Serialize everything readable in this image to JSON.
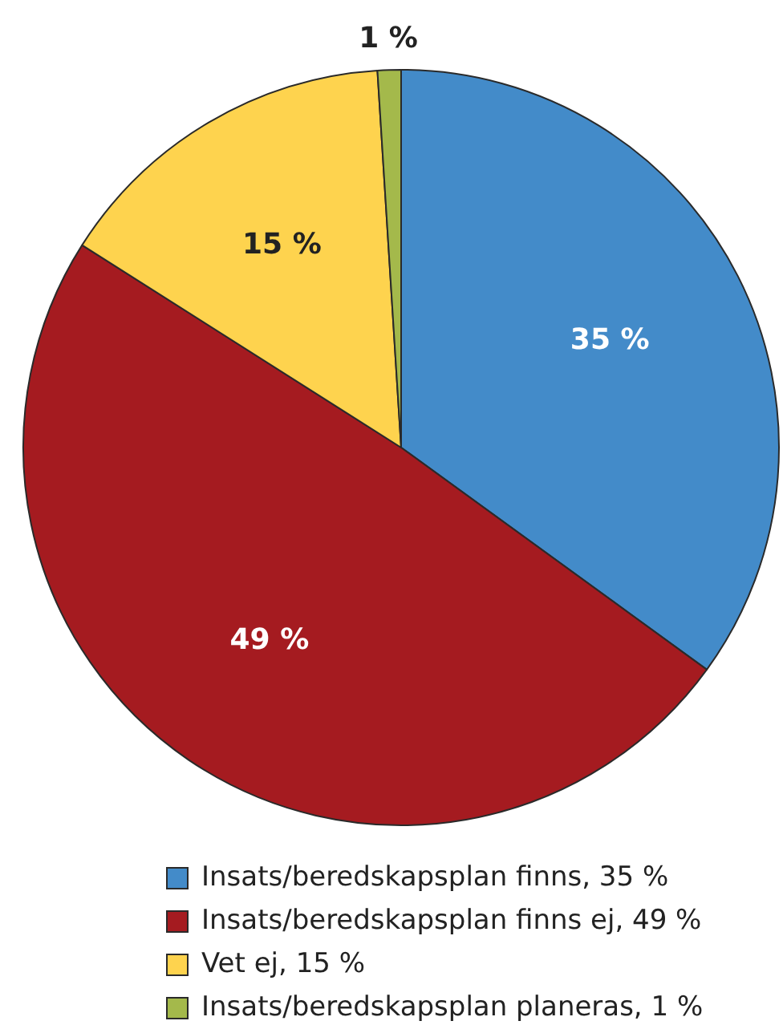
{
  "chart_data": {
    "type": "pie",
    "categories": [
      "Insats/beredskapsplan finns, 35 %",
      "Insats/beredskapsplan finns ej, 49 %",
      "Vet ej, 15 %",
      "Insats/beredskapsplan planeras, 1 %"
    ],
    "values": [
      35,
      49,
      15,
      1
    ],
    "colors": [
      "#438bc9",
      "#a51b20",
      "#fed34e",
      "#a4b94b"
    ],
    "value_labels": [
      "35 %",
      "49 %",
      "15 %",
      "1 %"
    ],
    "legend": "bottom"
  }
}
